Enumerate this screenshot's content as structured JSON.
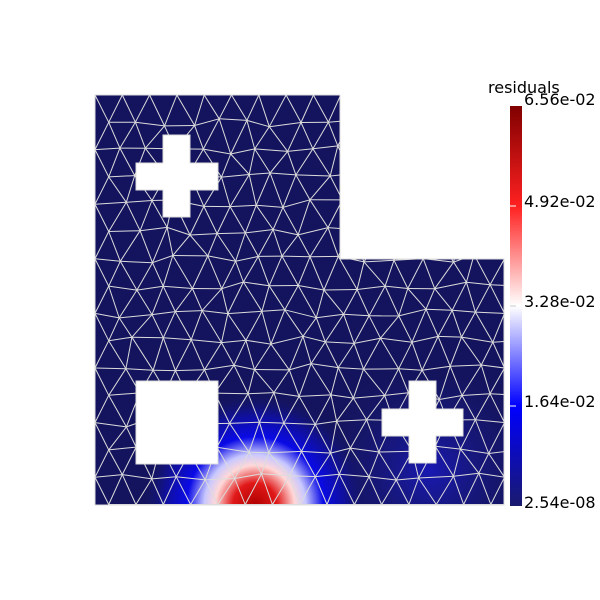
{
  "colorbar": {
    "title": "residuals",
    "labels": [
      "6.56e-02",
      "4.92e-02",
      "3.28e-02",
      "1.64e-02",
      "2.54e-08"
    ],
    "min_value": 2.54e-08,
    "max_value": 0.0656
  },
  "colors": {
    "background": "#ffffff",
    "mesh_edges": "#dcdcdc",
    "low": "#1a1a6e",
    "mid_blue": "#0000ff",
    "center": "#ffffff",
    "mid_red": "#ff2020",
    "high": "#800000"
  },
  "mesh": {
    "holes": [
      "cross-hole-top-left",
      "square-hole-bottom-left",
      "cross-hole-bottom-right"
    ]
  }
}
